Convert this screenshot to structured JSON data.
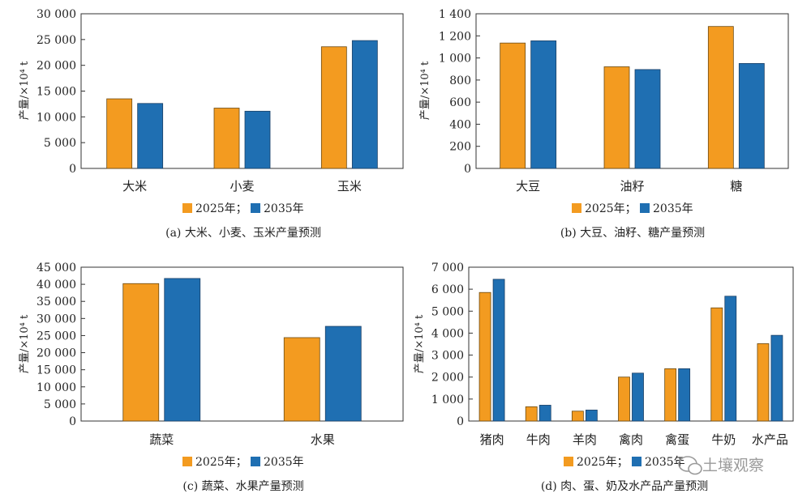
{
  "colors": {
    "s2025": "#f39b20",
    "s2035": "#1f6fb2",
    "stroke": "#6b4a12",
    "stroke2": "#1a3f66"
  },
  "watermark": {
    "icon": "wechat-icon",
    "text": "土壤观察"
  },
  "chart_data": [
    {
      "type": "bar",
      "ylabel": "产量/×10⁴ t",
      "ylim": [
        0,
        30000
      ],
      "yticks": [
        0,
        5000,
        10000,
        15000,
        20000,
        25000,
        30000
      ],
      "ytick_labels": [
        "0",
        "5 000",
        "10 000",
        "15 000",
        "20 000",
        "25 000",
        "30 000"
      ],
      "categories": [
        "大米",
        "小麦",
        "玉米"
      ],
      "series": [
        {
          "name": "2025年；",
          "values": [
            13500,
            11700,
            23600
          ]
        },
        {
          "name": "2035年",
          "values": [
            12600,
            11100,
            24800
          ]
        }
      ],
      "caption": "(a) 大米、小麦、玉米产量预测"
    },
    {
      "type": "bar",
      "ylabel": "产量/×10⁴ t",
      "ylim": [
        0,
        1400
      ],
      "yticks": [
        0,
        200,
        400,
        600,
        800,
        1000,
        1200,
        1400
      ],
      "ytick_labels": [
        "0",
        "200",
        "400",
        "600",
        "800",
        "1 000",
        "1 200",
        "1 400"
      ],
      "categories": [
        "大豆",
        "油籽",
        "糖"
      ],
      "series": [
        {
          "name": "2025年；",
          "values": [
            1135,
            920,
            1285
          ]
        },
        {
          "name": "2035年",
          "values": [
            1155,
            895,
            950
          ]
        }
      ],
      "caption": "(b) 大豆、油籽、糖产量预测"
    },
    {
      "type": "bar",
      "ylabel": "产量/×10⁴ t",
      "ylim": [
        0,
        45000
      ],
      "yticks": [
        0,
        5000,
        10000,
        15000,
        20000,
        25000,
        30000,
        35000,
        40000,
        45000
      ],
      "ytick_labels": [
        "0",
        "5 000",
        "10 000",
        "15 000",
        "20 000",
        "25 000",
        "30 000",
        "35 000",
        "40 000",
        "45 000"
      ],
      "categories": [
        "蔬菜",
        "水果"
      ],
      "series": [
        {
          "name": "2025年；",
          "values": [
            40200,
            24400
          ]
        },
        {
          "name": "2035年",
          "values": [
            41700,
            27700
          ]
        }
      ],
      "caption": "(c) 蔬菜、水果产量预测"
    },
    {
      "type": "bar",
      "ylabel": "产量/×10⁴ t",
      "ylim": [
        0,
        7000
      ],
      "yticks": [
        0,
        1000,
        2000,
        3000,
        4000,
        5000,
        6000,
        7000
      ],
      "ytick_labels": [
        "0",
        "1 000",
        "2 000",
        "3 000",
        "4 000",
        "5 000",
        "6 000",
        "7 000"
      ],
      "categories": [
        "猪肉",
        "牛肉",
        "羊肉",
        "禽肉",
        "禽蛋",
        "牛奶",
        "水产品"
      ],
      "series": [
        {
          "name": "2025年；",
          "values": [
            5850,
            650,
            450,
            2000,
            2380,
            5150,
            3520
          ]
        },
        {
          "name": "2035年",
          "values": [
            6450,
            720,
            500,
            2180,
            2380,
            5680,
            3900
          ]
        }
      ],
      "caption": "(d) 肉、蛋、奶及水产品产量预测"
    }
  ]
}
